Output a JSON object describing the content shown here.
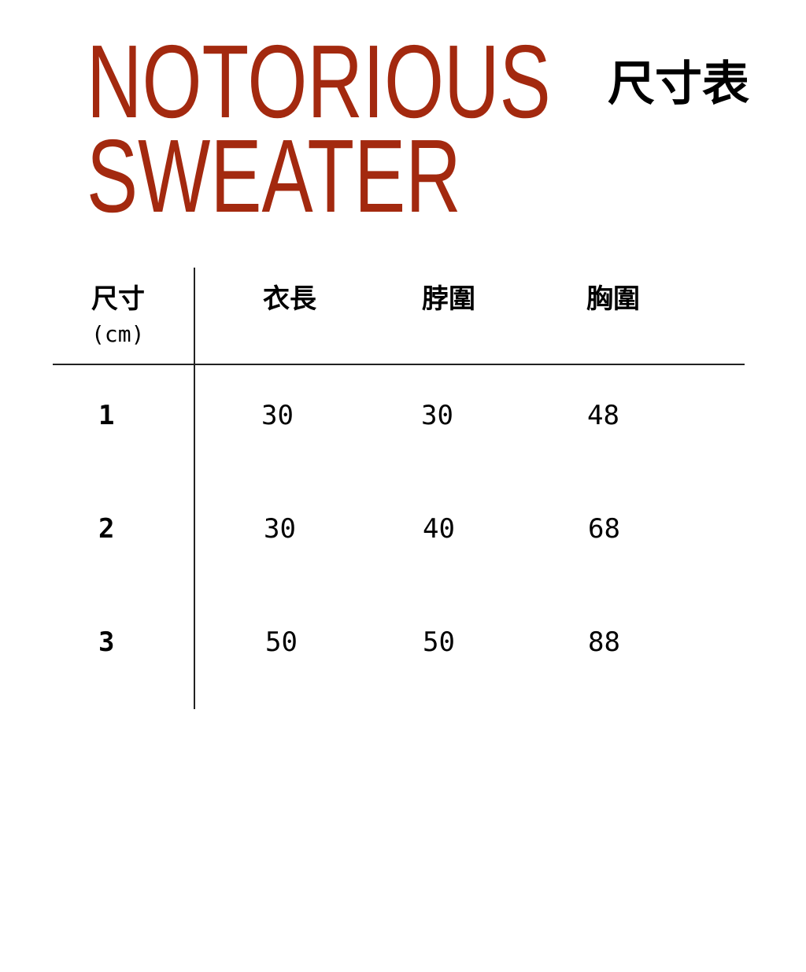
{
  "title_line1": "NOTORIOUS",
  "title_line2": "SWEATER",
  "subtitle": "尺寸表",
  "colors": {
    "title": "#a3290f",
    "text": "#000000"
  },
  "table": {
    "size_header": "尺寸",
    "unit": "(cm)",
    "columns": [
      "衣長",
      "脖圍",
      "胸圍"
    ],
    "rows": [
      {
        "size": "1",
        "values": [
          "30",
          "30",
          "48"
        ]
      },
      {
        "size": "2",
        "values": [
          "30",
          "40",
          "68"
        ]
      },
      {
        "size": "3",
        "values": [
          "50",
          "50",
          "88"
        ]
      }
    ]
  }
}
